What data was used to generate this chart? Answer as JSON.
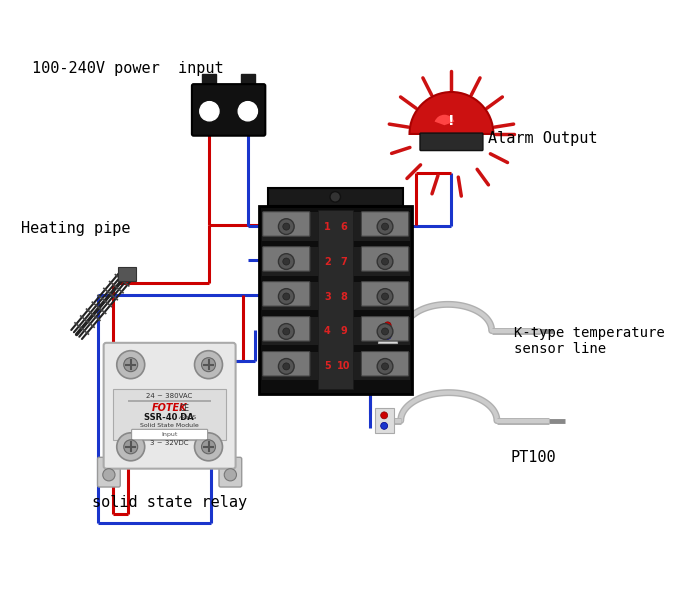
{
  "background_color": "#ffffff",
  "labels": {
    "power_input": "100-240V power  input",
    "heating_pipe": "Heating pipe",
    "alarm_output": "Alarm Output",
    "k_type": "K-type temperature\nsensor line",
    "pt100": "PT100",
    "relay": "solid state relay"
  },
  "colors": {
    "wire_red": "#cc0000",
    "wire_blue": "#1a35cc",
    "dark": "#111111",
    "gray": "#888888",
    "light_gray": "#cccccc",
    "alarm_red": "#cc1111"
  },
  "font_size": 11
}
